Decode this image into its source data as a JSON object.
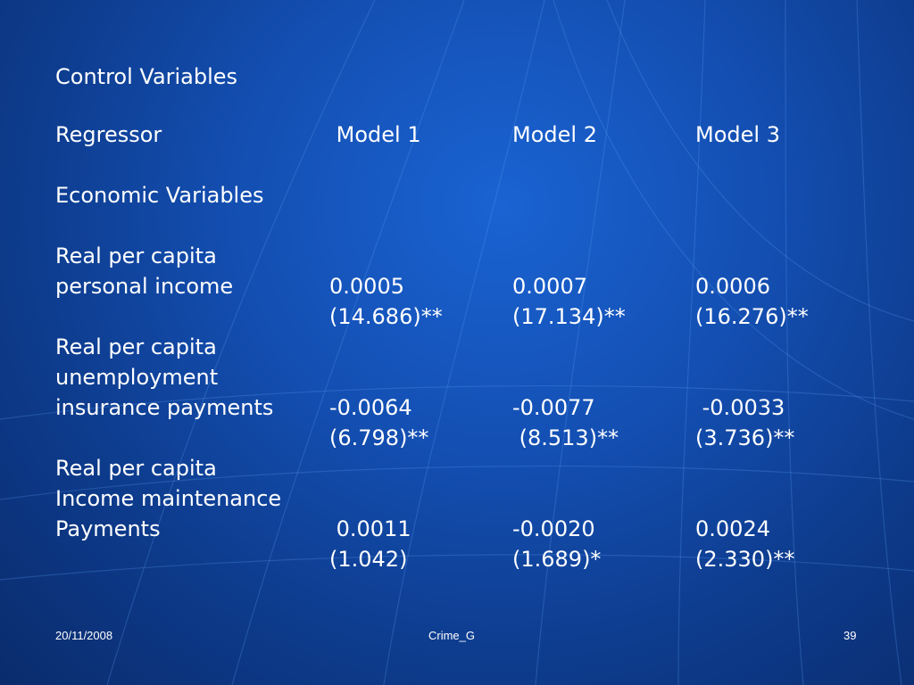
{
  "slide": {
    "title": "Control Variables",
    "header": {
      "regressor": "Regressor",
      "model1": " Model 1",
      "model2": "Model 2",
      "model3": "Model 3"
    },
    "section": "Economic Variables",
    "rows": [
      {
        "label_lines": [
          "Real per capita",
          "personal income"
        ],
        "model1": {
          "coef": "0.0005",
          "tstat": "(14.686)**"
        },
        "model2": {
          "coef": "0.0007",
          "tstat": "(17.134)**"
        },
        "model3": {
          "coef": "0.0006",
          "tstat": "(16.276)**"
        }
      },
      {
        "label_lines": [
          "Real per capita",
          "unemployment",
          "insurance payments"
        ],
        "model1": {
          "coef": "-0.0064",
          "tstat": "(6.798)**"
        },
        "model2": {
          "coef": "-0.0077",
          "tstat": " (8.513)**"
        },
        "model3": {
          "coef": " -0.0033",
          "tstat": "(3.736)**"
        }
      },
      {
        "label_lines": [
          "Real per capita",
          "Income maintenance",
          "Payments"
        ],
        "model1": {
          "coef": " 0.0011",
          "tstat": "(1.042)"
        },
        "model2": {
          "coef": "-0.0020",
          "tstat": "(1.689)*"
        },
        "model3": {
          "coef": "0.0024",
          "tstat": "(2.330)**"
        }
      }
    ]
  },
  "footer": {
    "date": "20/11/2008",
    "center": "Crime_G",
    "page": "39"
  }
}
